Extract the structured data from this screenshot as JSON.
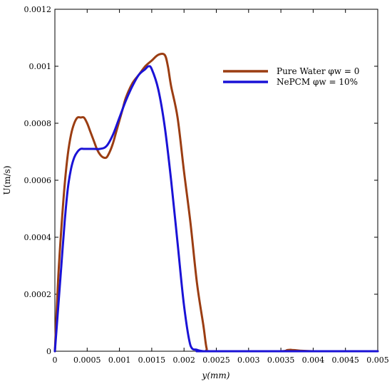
{
  "chart_data": {
    "type": "line",
    "xlabel": "y(mm)",
    "ylabel": "U(m/s)",
    "xlim": [
      0,
      0.005
    ],
    "ylim": [
      0,
      0.0012
    ],
    "x_ticks": [
      "0",
      "0.0005",
      "0.001",
      "0.0015",
      "0.002",
      "0.0025",
      "0.003",
      "0.0035",
      "0.004",
      "0.0045",
      "0.005"
    ],
    "y_ticks": [
      "0",
      "0.0002",
      "0.0004",
      "0.0006",
      "0.0008",
      "0.001",
      "0.0012"
    ],
    "grid": false,
    "legend_position": "top-right",
    "series": [
      {
        "name": "Pure Water φw = 0",
        "color": "#9b3d12",
        "x": [
          0,
          5e-05,
          0.0001,
          0.00015,
          0.0002,
          0.00025,
          0.0003,
          0.00035,
          0.0004,
          0.00045,
          0.0005,
          0.00055,
          0.0006,
          0.00065,
          0.0007,
          0.00075,
          0.0008,
          0.00085,
          0.0009,
          0.00095,
          0.001,
          0.00105,
          0.0011,
          0.0012,
          0.0013,
          0.0014,
          0.0015,
          0.0016,
          0.0017,
          0.00175,
          0.0018,
          0.0019,
          0.002,
          0.0021,
          0.0022,
          0.0023,
          0.00235,
          0.0024,
          0.003,
          0.0035,
          0.0036,
          0.00365,
          0.0037,
          0.004,
          0.005
        ],
        "y": [
          0,
          0.00025,
          0.00043,
          0.00058,
          0.00069,
          0.00076,
          0.0008,
          0.00082,
          0.00082,
          0.00082,
          0.0008,
          0.00077,
          0.00074,
          0.00071,
          0.00069,
          0.00068,
          0.00068,
          0.0007,
          0.00073,
          0.00077,
          0.00081,
          0.00085,
          0.00089,
          0.00094,
          0.00097,
          0.001,
          0.00102,
          0.00104,
          0.00104,
          0.001,
          0.00093,
          0.00082,
          0.00063,
          0.00045,
          0.00024,
          9e-05,
          1e-05,
          0,
          0,
          0,
          4e-06,
          5e-06,
          4e-06,
          0,
          0
        ]
      },
      {
        "name": "NePCM φw = 10%",
        "color": "#1a12d6",
        "x": [
          0,
          5e-05,
          0.0001,
          0.00015,
          0.0002,
          0.00025,
          0.0003,
          0.00035,
          0.0004,
          0.00045,
          0.0005,
          0.0006,
          0.0007,
          0.0008,
          0.0009,
          0.001,
          0.0011,
          0.0012,
          0.0013,
          0.0014,
          0.00145,
          0.0015,
          0.0016,
          0.0017,
          0.0018,
          0.0019,
          0.002,
          0.0021,
          0.0022,
          0.0023,
          0.00235,
          0.0024,
          0.005
        ],
        "y": [
          0,
          0.00015,
          0.0003,
          0.00045,
          0.00057,
          0.00064,
          0.00068,
          0.0007,
          0.00071,
          0.00071,
          0.00071,
          0.00071,
          0.00071,
          0.00072,
          0.00076,
          0.00082,
          0.00088,
          0.00093,
          0.00097,
          0.00099,
          0.001,
          0.00099,
          0.00092,
          0.00079,
          0.0006,
          0.00038,
          0.00016,
          2e-05,
          5e-06,
          0,
          0,
          0,
          0
        ]
      }
    ]
  }
}
